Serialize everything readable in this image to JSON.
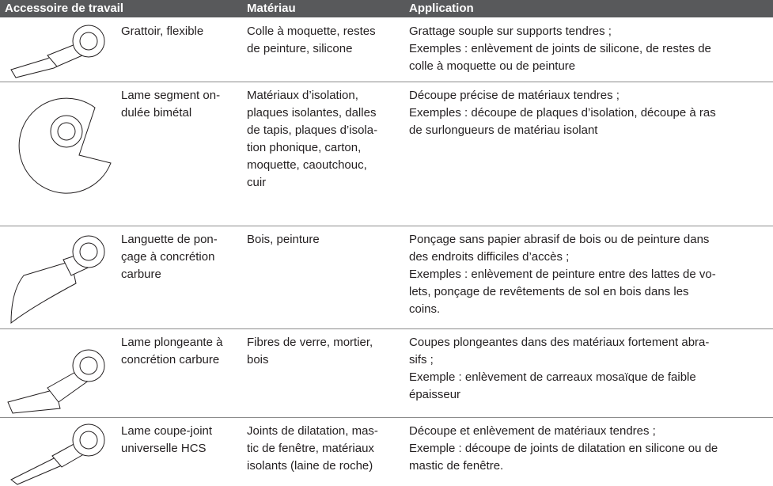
{
  "table": {
    "header": [
      "Accessoire de travail",
      "Matériau",
      "Application"
    ],
    "rows": [
      [
        [
          "Grattoir, flexible"
        ],
        [
          "Colle à moquette, restes",
          "de peinture, silicone"
        ],
        [
          "Grattage souple sur supports tendres ;",
          "Exemples : enlèvement de joints de silicone, de restes de",
          "colle à moquette ou de peinture"
        ]
      ],
      [
        [
          "Lame segment on-",
          "dulée bimétal"
        ],
        [
          "Matériaux d’isolation,",
          "plaques isolantes, dalles",
          "de tapis, plaques d’isola-",
          "tion phonique, carton,",
          "moquette, caoutchouc,",
          "cuir"
        ],
        [
          "Découpe précise de matériaux tendres ;",
          "Exemples : découpe de plaques d’isolation, découpe à ras",
          "de surlongueurs de matériau isolant"
        ]
      ],
      [
        [
          "Languette de pon-",
          "çage à concrétion",
          "carbure"
        ],
        [
          "Bois, peinture"
        ],
        [
          "Ponçage sans papier abrasif de bois ou de peinture dans",
          "des endroits difficiles d’accès ;",
          "Exemples : enlèvement de peinture entre des lattes de vo-",
          "lets, ponçage de revêtements de sol en bois dans les",
          "coins."
        ]
      ],
      [
        [
          "Lame plongeante à",
          "concrétion carbure"
        ],
        [
          "Fibres de verre, mortier,",
          "bois"
        ],
        [
          "Coupes plongeantes dans des matériaux fortement abra-",
          "sifs ;",
          "Exemple : enlèvement de carreaux mosaïque de faible",
          "épaisseur"
        ]
      ],
      [
        [
          "Lame coupe-joint",
          "universelle HCS"
        ],
        [
          "Joints de dilatation, mas-",
          "tic de fenêtre, matériaux",
          "isolants (laine de roche)"
        ],
        [
          "Découpe et enlèvement de matériaux tendres ;",
          "Exemple : découpe de joints de dilatation en silicone ou de",
          "mastic de fenêtre."
        ]
      ]
    ]
  }
}
